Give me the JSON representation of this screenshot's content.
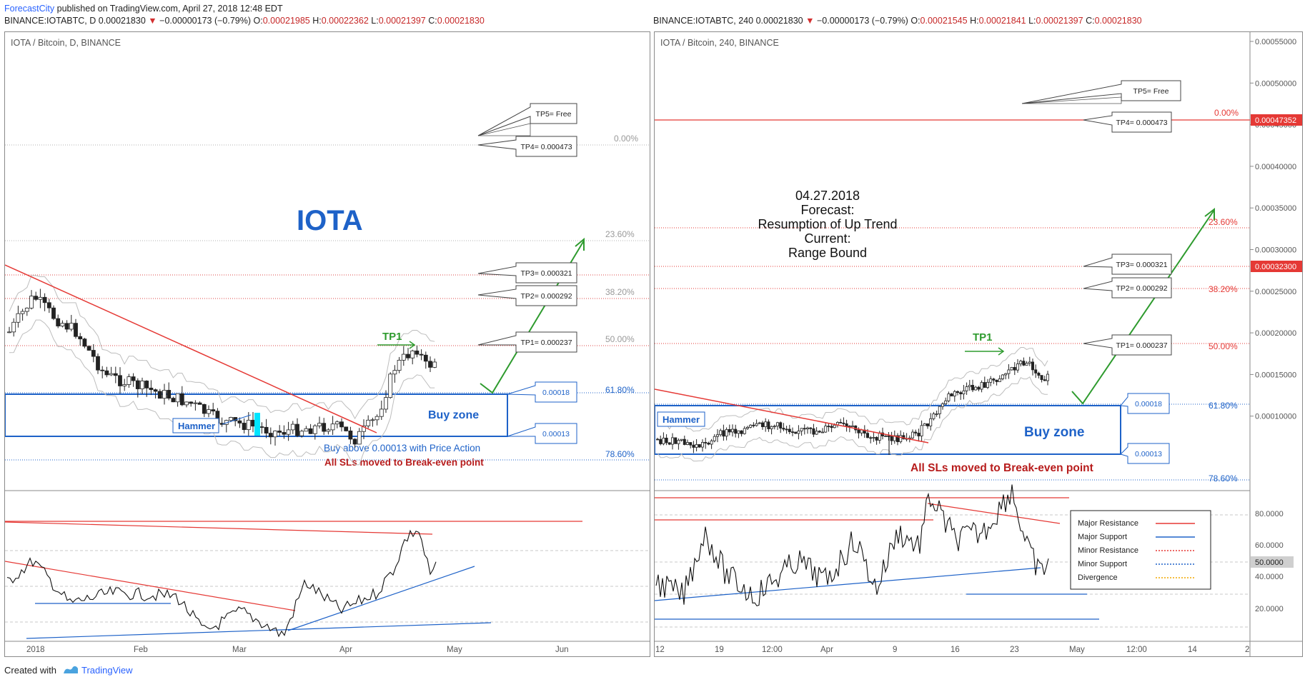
{
  "header": {
    "publisher": "ForecastCity",
    "published_text": "published on TradingView.com, April 27, 2018 12:48 EDT"
  },
  "left_chart": {
    "ohlc": {
      "symbol": "BINANCE:IOTABTC, D",
      "last": "0.00021830",
      "change": "−0.00000173 (−0.79%)",
      "o_label": "O:",
      "o": "0.00021985",
      "h_label": "H:",
      "h": "0.00022362",
      "l_label": "L:",
      "l": "0.00021397",
      "c_label": "C:",
      "c": "0.00021830"
    },
    "title": "IOTA / Bitcoin, D, BINANCE",
    "big_label": "IOTA",
    "buy_zone": "Buy zone",
    "buy_note": "Buy  above 0.00013 with Price Action",
    "sl_note": "All SLs moved to Break-even point",
    "tp1": "TP1",
    "hammer": "Hammer",
    "callouts": [
      "TP5= Free",
      "TP4= 0.000473",
      "TP3= 0.000321",
      "TP2= 0.000292",
      "TP1= 0.000237",
      "0.00018",
      "0.00013"
    ],
    "fib": [
      "0.00%",
      "23.60%",
      "38.20%",
      "50.00%",
      "61.80%",
      "78.60%"
    ],
    "time_axis": [
      "2018",
      "Feb",
      "Mar",
      "Apr",
      "May",
      "Jun"
    ]
  },
  "right_chart": {
    "ohlc": {
      "symbol": "BINANCE:IOTABTC, 240",
      "last": "0.00021830",
      "change": "−0.00000173 (−0.79%)",
      "o_label": "O:",
      "o": "0.00021545",
      "h_label": "H:",
      "h": "0.00021841",
      "l_label": "L:",
      "l": "0.00021397",
      "c_label": "C:",
      "c": "0.00021830"
    },
    "title": "IOTA / Bitcoin, 240, BINANCE",
    "forecast_lines": [
      "04.27.2018",
      "Forecast:",
      "Resumption of Up Trend",
      "Current:",
      "Range Bound"
    ],
    "buy_zone": "Buy zone",
    "sl_note": "All SLs moved to Break-even point",
    "tp1": "TP1",
    "hammer": "Hammer",
    "callouts": [
      "TP5= Free",
      "TP4= 0.000473",
      "TP3= 0.000321",
      "TP2= 0.000292",
      "TP1= 0.000237",
      "0.00018",
      "0.00013"
    ],
    "fib": [
      "0.00%",
      "23.60%",
      "38.20%",
      "50.00%",
      "61.80%",
      "78.60%"
    ],
    "price_axis": [
      "0.00055000",
      "0.00050000",
      "0.00045000",
      "0.00040000",
      "0.00035000",
      "0.00030000",
      "0.00025000",
      "0.00020000",
      "0.00015000",
      "0.00010000"
    ],
    "price_tags": [
      "0.00047352",
      "0.00032300"
    ],
    "osc_axis": [
      "80.0000",
      "60.0000",
      "50.0000",
      "40.0000",
      "20.0000"
    ],
    "time_axis": [
      "12",
      "19",
      "12:00",
      "Apr",
      "9",
      "16",
      "23",
      "May",
      "12:00",
      "14",
      "2"
    ],
    "legend": [
      "Major Resistance",
      "Major Support",
      "Minor Resistance",
      "Minor Support",
      "Divergence"
    ],
    "legend_colors": [
      "#e53935",
      "#1e62c8",
      "#e53935",
      "#1e62c8",
      "#f2a900"
    ]
  },
  "footer": {
    "created_with": "Created with",
    "brand": "TradingView"
  }
}
